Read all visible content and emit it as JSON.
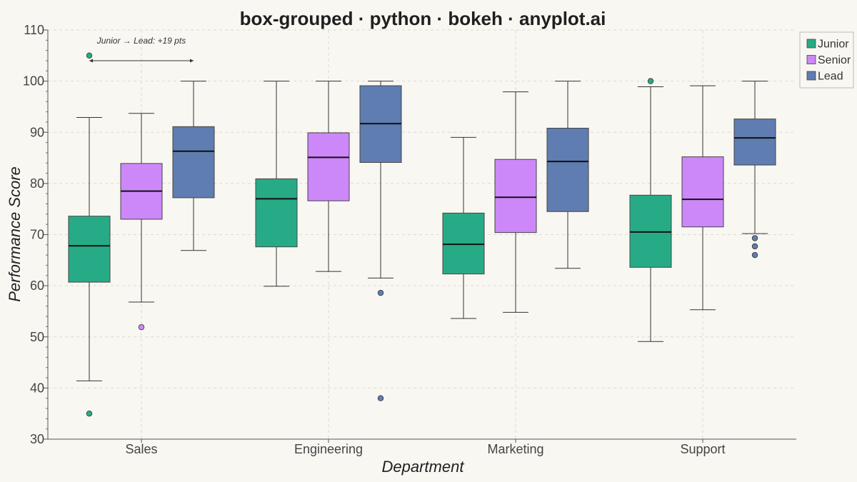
{
  "chart_data": {
    "type": "box",
    "title": "box-grouped · python · bokeh · anyplot.ai",
    "xlabel": "Department",
    "ylabel": "Performance Score",
    "ylim": [
      30,
      110
    ],
    "yticks": [
      30,
      40,
      50,
      60,
      70,
      80,
      90,
      100,
      110
    ],
    "grid": true,
    "legend_position": "top-right",
    "categories": [
      "Sales",
      "Engineering",
      "Marketing",
      "Support"
    ],
    "series": [
      {
        "name": "Junior",
        "color": "#27ab87",
        "boxes": [
          {
            "whisker_low": 41.4,
            "q1": 60.7,
            "median": 67.8,
            "q3": 73.6,
            "whisker_high": 92.9,
            "outliers": [
              105.0,
              35.0
            ]
          },
          {
            "whisker_low": 59.9,
            "q1": 67.6,
            "median": 77.0,
            "q3": 80.9,
            "whisker_high": 100.0,
            "outliers": []
          },
          {
            "whisker_low": 53.6,
            "q1": 62.3,
            "median": 68.1,
            "q3": 74.2,
            "whisker_high": 89.0,
            "outliers": []
          },
          {
            "whisker_low": 49.1,
            "q1": 63.6,
            "median": 70.5,
            "q3": 77.7,
            "whisker_high": 98.9,
            "outliers": [
              100.0
            ]
          }
        ]
      },
      {
        "name": "Senior",
        "color": "#cc88f8",
        "boxes": [
          {
            "whisker_low": 56.8,
            "q1": 73.0,
            "median": 78.5,
            "q3": 83.9,
            "whisker_high": 93.7,
            "outliers": [
              51.9
            ]
          },
          {
            "whisker_low": 62.8,
            "q1": 76.6,
            "median": 85.1,
            "q3": 89.9,
            "whisker_high": 100.0,
            "outliers": []
          },
          {
            "whisker_low": 54.8,
            "q1": 70.4,
            "median": 77.3,
            "q3": 84.7,
            "whisker_high": 97.9,
            "outliers": []
          },
          {
            "whisker_low": 55.3,
            "q1": 71.5,
            "median": 76.9,
            "q3": 85.2,
            "whisker_high": 99.1,
            "outliers": []
          }
        ]
      },
      {
        "name": "Lead",
        "color": "#5f7db0",
        "boxes": [
          {
            "whisker_low": 66.9,
            "q1": 77.2,
            "median": 86.3,
            "q3": 91.1,
            "whisker_high": 100.0,
            "outliers": []
          },
          {
            "whisker_low": 61.5,
            "q1": 84.1,
            "median": 91.7,
            "q3": 99.1,
            "whisker_high": 100.0,
            "outliers": [
              58.6,
              38.0
            ]
          },
          {
            "whisker_low": 63.4,
            "q1": 74.5,
            "median": 84.3,
            "q3": 90.8,
            "whisker_high": 100.0,
            "outliers": []
          },
          {
            "whisker_low": 70.2,
            "q1": 83.6,
            "median": 88.9,
            "q3": 92.6,
            "whisker_high": 100.0,
            "outliers": [
              69.3,
              67.7,
              66.0
            ]
          }
        ]
      }
    ],
    "annotations": [
      {
        "text": "Junior → Lead: +19 pts",
        "category": "Sales",
        "y": 104
      }
    ]
  }
}
